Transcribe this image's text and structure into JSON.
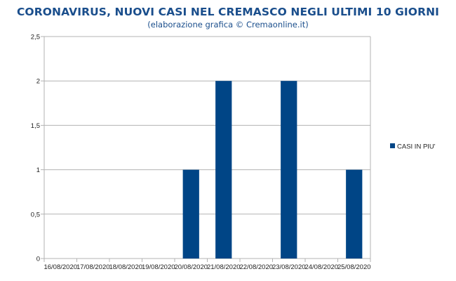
{
  "header": {
    "title": "CORONAVIRUS, NUOVI CASI NEL CREMASCO NEGLI ULTIMI 10 GIORNI",
    "subtitle": "(elaborazione grafica © Cremaonline.it)"
  },
  "chart_data": {
    "type": "bar",
    "title": "CORONAVIRUS, NUOVI CASI NEL CREMASCO NEGLI ULTIMI 10 GIORNI",
    "subtitle": "(elaborazione grafica © Cremaonline.it)",
    "categories": [
      "16/08/2020",
      "17/08/2020",
      "18/08/2020",
      "19/08/2020",
      "20/08/2020",
      "21/08/2020",
      "22/08/2020",
      "23/08/2020",
      "24/08/2020",
      "25/08/2020"
    ],
    "series": [
      {
        "name": "CASI IN PIU'",
        "values": [
          0,
          0,
          0,
          0,
          1,
          2,
          0,
          2,
          0,
          1
        ],
        "color": "#004586"
      }
    ],
    "ylim": [
      0,
      2.5
    ],
    "yticks": [
      0,
      0.5,
      1,
      1.5,
      2,
      2.5
    ],
    "ytick_labels": [
      "0",
      "0,5",
      "1",
      "1,5",
      "2",
      "2,5"
    ],
    "grid": "horizontal",
    "legend": "right"
  }
}
